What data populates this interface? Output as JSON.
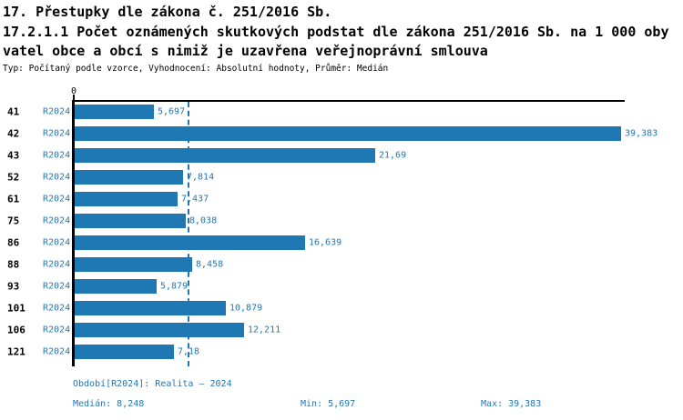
{
  "colors": {
    "ink": "#000000",
    "accent_blue": "#1f77b4",
    "bar_blue": "#1f77b4"
  },
  "header": {
    "line1": "17. Přestupky dle zákona č. 251/2016 Sb.",
    "line2": "17.2.1.1 Počet oznámených skutkových podstat dle zákona 251/2016 Sb. na 1 000 oby",
    "line3": "vatel obce a obcí s nimiž je uzavřena veřejnoprávní smlouva",
    "meta": "Typ: Počítaný podle vzorce, Vyhodnocení: Absolutní hodnoty, Průměr: Medián"
  },
  "chart_data": {
    "type": "bar",
    "orientation": "horizontal",
    "title": "17.2.1.1 Počet oznámených skutkových podstat dle zákona 251/2016 Sb. na 1 000 obyvatel obce a obcí s nimiž je uzavřena veřejnoprávní smlouva",
    "categories": [
      "41",
      "42",
      "43",
      "52",
      "61",
      "75",
      "86",
      "88",
      "93",
      "101",
      "106",
      "121"
    ],
    "series": [
      {
        "name": "R2024",
        "values": [
          5.697,
          39.383,
          21.69,
          7.814,
          7.437,
          8.038,
          16.639,
          8.458,
          5.879,
          10.879,
          12.211,
          7.18
        ],
        "value_labels": [
          "5,697",
          "39,383",
          "21,69",
          "7,814",
          "7,437",
          "8,038",
          "16,639",
          "8,458",
          "5,879",
          "10,879",
          "12,211",
          "7,18"
        ]
      }
    ],
    "xlim": [
      0,
      39.383
    ],
    "x_ticks": [
      {
        "value": 0,
        "label": "0"
      }
    ],
    "grid": false,
    "median_value": 8.248,
    "min_value": 5.697,
    "max_value": 39.383,
    "bar_color": "#1f77b4",
    "median_line": {
      "style": "dashed",
      "color": "#1f77b4"
    }
  },
  "footer": {
    "period": "Období[R2024]: Realita – 2024",
    "median": "Medián: 8,248",
    "min": "Min: 5,697",
    "max": "Max: 39,383"
  }
}
